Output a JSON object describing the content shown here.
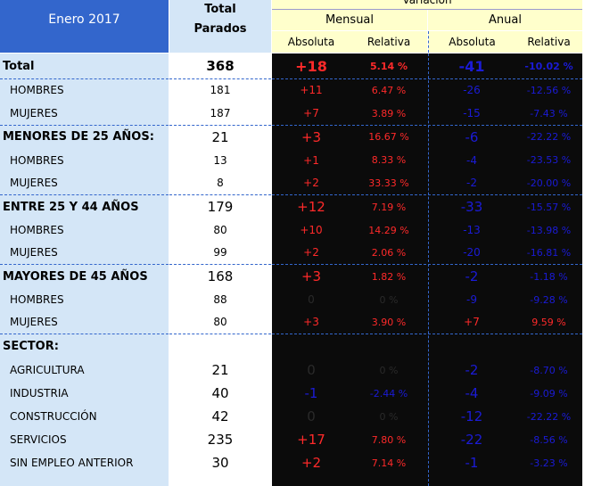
{
  "header": {
    "title": "Enero 2017",
    "total_label_line1": "Total",
    "total_label_line2": "Parados",
    "variacion": "Variación",
    "mensual": "Mensual",
    "anual": "Anual",
    "absoluta": "Absoluta",
    "relativa": "Relativa"
  },
  "rows": [
    {
      "label": "Total",
      "total": "368",
      "m_abs": "+18",
      "m_rel": "5.14 %",
      "a_abs": "-41",
      "a_rel": "-10.02 %"
    },
    {
      "label": "HOMBRES",
      "total": "181",
      "m_abs": "+11",
      "m_rel": "6.47 %",
      "a_abs": "-26",
      "a_rel": "-12.56 %"
    },
    {
      "label": "MUJERES",
      "total": "187",
      "m_abs": "+7",
      "m_rel": "3.89 %",
      "a_abs": "-15",
      "a_rel": "-7.43 %"
    },
    {
      "label": "MENORES DE 25 AÑOS:",
      "total": "21",
      "m_abs": "+3",
      "m_rel": "16.67 %",
      "a_abs": "-6",
      "a_rel": "-22.22 %"
    },
    {
      "label": "HOMBRES",
      "total": "13",
      "m_abs": "+1",
      "m_rel": "8.33 %",
      "a_abs": "-4",
      "a_rel": "-23.53 %"
    },
    {
      "label": "MUJERES",
      "total": "8",
      "m_abs": "+2",
      "m_rel": "33.33 %",
      "a_abs": "-2",
      "a_rel": "-20.00 %"
    },
    {
      "label": "ENTRE 25 Y 44 AÑOS",
      "total": "179",
      "m_abs": "+12",
      "m_rel": "7.19 %",
      "a_abs": "-33",
      "a_rel": "-15.57 %"
    },
    {
      "label": "HOMBRES",
      "total": "80",
      "m_abs": "+10",
      "m_rel": "14.29 %",
      "a_abs": "-13",
      "a_rel": "-13.98 %"
    },
    {
      "label": "MUJERES",
      "total": "99",
      "m_abs": "+2",
      "m_rel": "2.06 %",
      "a_abs": "-20",
      "a_rel": "-16.81 %"
    },
    {
      "label": "MAYORES DE 45 AÑOS",
      "total": "168",
      "m_abs": "+3",
      "m_rel": "1.82 %",
      "a_abs": "-2",
      "a_rel": "-1.18 %"
    },
    {
      "label": "HOMBRES",
      "total": "88",
      "m_abs": "0",
      "m_rel": "0 %",
      "a_abs": "-9",
      "a_rel": "-9.28 %"
    },
    {
      "label": "MUJERES",
      "total": "80",
      "m_abs": "+3",
      "m_rel": "3.90 %",
      "a_abs": "+7",
      "a_rel": "9.59 %"
    },
    {
      "label": "SECTOR:",
      "total": "",
      "m_abs": "",
      "m_rel": "",
      "a_abs": "",
      "a_rel": ""
    },
    {
      "label": "AGRICULTURA",
      "total": "21",
      "m_abs": "0",
      "m_rel": "0 %",
      "a_abs": "-2",
      "a_rel": "-8.70 %"
    },
    {
      "label": "INDUSTRIA",
      "total": "40",
      "m_abs": "-1",
      "m_rel": "-2.44 %",
      "a_abs": "-4",
      "a_rel": "-9.09 %"
    },
    {
      "label": "CONSTRUCCIÓN",
      "total": "42",
      "m_abs": "0",
      "m_rel": "0 %",
      "a_abs": "-12",
      "a_rel": "-22.22 %"
    },
    {
      "label": "SERVICIOS",
      "total": "235",
      "m_abs": "+17",
      "m_rel": "7.80 %",
      "a_abs": "-22",
      "a_rel": "-8.56 %"
    },
    {
      "label": "SIN EMPLEO ANTERIOR",
      "total": "30",
      "m_abs": "+2",
      "m_rel": "7.14 %",
      "a_abs": "-1",
      "a_rel": "-3.23 %"
    }
  ],
  "colors": {
    "header_blue": "#3366cc",
    "label_bg": "#d4e6f7",
    "header_yellow": "#ffffcc",
    "positive": "#ff2a2a",
    "negative": "#1b1bd6"
  }
}
